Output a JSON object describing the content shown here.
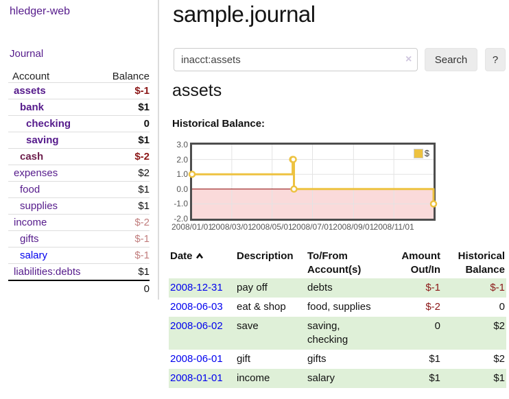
{
  "brand": "hledger-web",
  "nav": {
    "journal": "Journal"
  },
  "sidebar": {
    "col_account": "Account",
    "col_balance": "Balance",
    "rows": [
      {
        "name": "assets",
        "balance": "$-1",
        "depth": 0,
        "bold": true,
        "name_color": "purple",
        "balance_color": "neg-strong"
      },
      {
        "name": "bank",
        "balance": "$1",
        "depth": 1,
        "bold": true,
        "name_color": "purple",
        "balance_color": "normal"
      },
      {
        "name": "checking",
        "balance": "0",
        "depth": 2,
        "bold": true,
        "name_color": "purple",
        "balance_color": "normal"
      },
      {
        "name": "saving",
        "balance": "$1",
        "depth": 2,
        "bold": true,
        "name_color": "purple",
        "balance_color": "normal"
      },
      {
        "name": "cash",
        "balance": "$-2",
        "depth": 1,
        "bold": true,
        "name_color": "maroon",
        "balance_color": "neg-strong"
      },
      {
        "name": "expenses",
        "balance": "$2",
        "depth": 0,
        "bold": false,
        "name_color": "purple",
        "balance_color": "normal"
      },
      {
        "name": "food",
        "balance": "$1",
        "depth": 1,
        "bold": false,
        "name_color": "purple",
        "balance_color": "normal"
      },
      {
        "name": "supplies",
        "balance": "$1",
        "depth": 1,
        "bold": false,
        "name_color": "purple",
        "balance_color": "normal"
      },
      {
        "name": "income",
        "balance": "$-2",
        "depth": 0,
        "bold": false,
        "name_color": "purple",
        "balance_color": "neg-soft"
      },
      {
        "name": "gifts",
        "balance": "$-1",
        "depth": 1,
        "bold": false,
        "name_color": "purple",
        "balance_color": "neg-soft"
      },
      {
        "name": "salary",
        "balance": "$-1",
        "depth": 1,
        "bold": false,
        "name_color": "blue",
        "balance_color": "neg-soft"
      },
      {
        "name": "liabilities:debts",
        "balance": "$1",
        "depth": 0,
        "bold": false,
        "name_color": "purple",
        "balance_color": "normal"
      }
    ],
    "total": "0"
  },
  "main": {
    "title": "sample.journal"
  },
  "search": {
    "value": "inacct:assets",
    "clear": "×",
    "button": "Search",
    "help": "?"
  },
  "account_view": {
    "heading": "assets",
    "chart_title": "Historical Balance:"
  },
  "chart_data": {
    "type": "line",
    "steps": true,
    "series": [
      {
        "name": "$",
        "color": "#EDC240",
        "points": [
          [
            "2008-01-01",
            1
          ],
          [
            "2008-06-01",
            2
          ],
          [
            "2008-06-02",
            2
          ],
          [
            "2008-06-03",
            0
          ],
          [
            "2008-12-31",
            -1
          ]
        ]
      }
    ],
    "x_range": [
      "2008-01-01",
      "2008-12-31"
    ],
    "ylim": [
      -2,
      3
    ],
    "y_ticks": [
      "3.0",
      "2.0",
      "1.0",
      "0.0",
      "-1.0",
      "-2.0"
    ],
    "x_ticks": [
      "2008/01/01",
      "2008/03/01",
      "2008/05/01",
      "2008/07/01",
      "2008/09/01",
      "2008/11/01"
    ],
    "grid": true,
    "grid_color": "#e3e3e3",
    "negative_fill": "#fadada",
    "zero_line_color": "#8b0000",
    "legend_position": "top-right",
    "marker": {
      "fill": "#ffffff",
      "radius": 4
    }
  },
  "register": {
    "headers": {
      "date": "Date",
      "description": "Description",
      "tofrom_line1": "To/From",
      "tofrom_line2": "Account(s)",
      "amount_line1": "Amount",
      "amount_line2": "Out/In",
      "balance_line1": "Historical",
      "balance_line2": "Balance"
    },
    "sort_icon": "chevron-up",
    "rows": [
      {
        "date": "2008-12-31",
        "description": "pay off",
        "accounts": "debts",
        "amount": "$-1",
        "amount_neg": true,
        "balance": "$-1",
        "balance_neg": true,
        "shade": true
      },
      {
        "date": "2008-06-03",
        "description": "eat & shop",
        "accounts": "food, supplies",
        "amount": "$-2",
        "amount_neg": true,
        "balance": "0",
        "balance_neg": false,
        "shade": false
      },
      {
        "date": "2008-06-02",
        "description": "save",
        "accounts": "saving, checking",
        "amount": "0",
        "amount_neg": false,
        "balance": "$2",
        "balance_neg": false,
        "shade": true
      },
      {
        "date": "2008-06-01",
        "description": "gift",
        "accounts": "gifts",
        "amount": "$1",
        "amount_neg": false,
        "balance": "$2",
        "balance_neg": false,
        "shade": false
      },
      {
        "date": "2008-01-01",
        "description": "income",
        "accounts": "salary",
        "amount": "$1",
        "amount_neg": false,
        "balance": "$1",
        "balance_neg": false,
        "shade": true
      }
    ]
  },
  "colors": {
    "link_purple": "#551A8B",
    "link_blue": "#0000EE",
    "negative_strong": "#8b1717",
    "negative_soft": "#c17d7d",
    "row_shade_green": "#dff0d8",
    "chart_line": "#EDC240"
  }
}
